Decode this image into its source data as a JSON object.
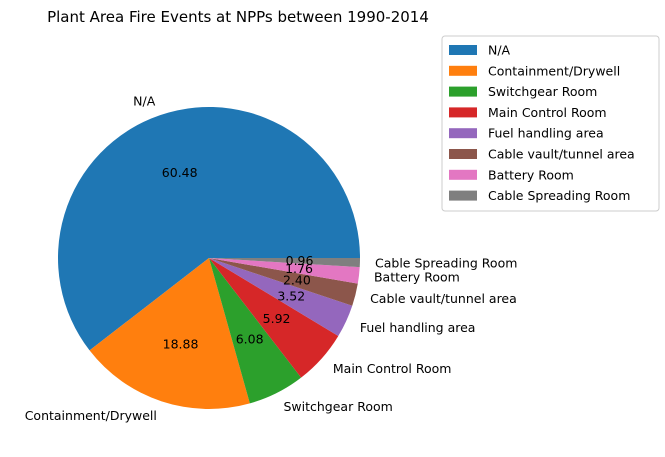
{
  "chart_data": {
    "type": "pie",
    "title": "Plant Area Fire Events at NPPs between 1990-2014",
    "categories": [
      " N/A",
      "Containment/Drywell",
      "Switchgear Room",
      "Main Control Room",
      "Fuel handling area",
      "Cable vault/tunnel area",
      "Battery Room",
      "Cable Spreading Room"
    ],
    "slice_labels": [
      "N/A",
      "Containment/Drywell",
      "Switchgear Room",
      "Main Control Room",
      "Fuel handling area",
      "Cable vault/tunnel area",
      "Battery Room",
      "Cable Spreading Room"
    ],
    "values": [
      60.48,
      18.88,
      6.08,
      5.92,
      3.52,
      2.4,
      1.76,
      0.96
    ],
    "value_labels": [
      "60.48",
      "18.88",
      "6.08",
      "5.92",
      "3.52",
      "2.40",
      "1.76",
      "0.96"
    ],
    "colors": [
      "#1f77b4",
      "#ff7f0e",
      "#2ca02c",
      "#d62728",
      "#9467bd",
      "#8c564b",
      "#e377c2",
      "#7f7f7f"
    ],
    "legend": "upper-right"
  }
}
